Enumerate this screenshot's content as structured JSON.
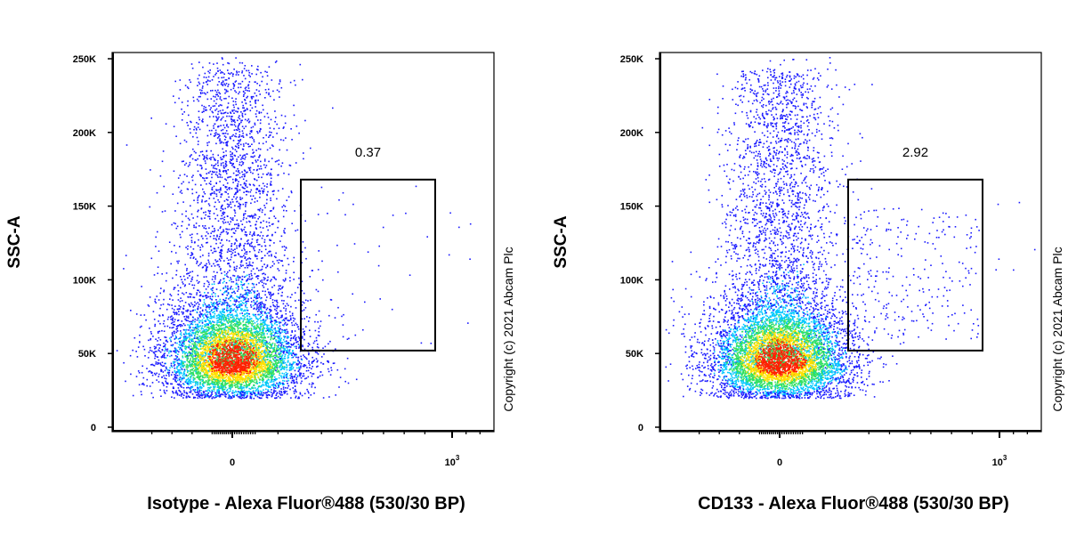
{
  "chart_data": [
    {
      "type": "scatter",
      "style": "flow-cytometry density dot plot (pseudocolor)",
      "xlabel": "Isotype - Alexa Fluor®488 (530/30 BP)",
      "ylabel": "SSC-A",
      "y_ticks": [
        "0",
        "50K",
        "100K",
        "150K",
        "200K",
        "250K"
      ],
      "y_tick_values": [
        0,
        50000,
        100000,
        150000,
        200000,
        250000
      ],
      "ylim": [
        0,
        250000
      ],
      "x_scale": "biexponential",
      "x_ticks": [
        {
          "label": "0",
          "value": 0
        },
        {
          "label": "10",
          "sup": "3",
          "value": 1000
        }
      ],
      "xlim": [
        -500,
        1300
      ],
      "gate": {
        "label": "0.37",
        "percent": 0.37,
        "x_range": [
          300,
          950
        ],
        "y_range": [
          52000,
          168000
        ]
      },
      "population": {
        "x_center": 0,
        "y_center": 45000,
        "events_outside_gate_approx": 8000,
        "events_in_gate_approx": 30
      },
      "copyright": "Copyright (c) 2021 Abcam Plc"
    },
    {
      "type": "scatter",
      "style": "flow-cytometry density dot plot (pseudocolor)",
      "xlabel": "CD133 - Alexa Fluor®488 (530/30 BP)",
      "ylabel": "SSC-A",
      "y_ticks": [
        "0",
        "50K",
        "100K",
        "150K",
        "200K",
        "250K"
      ],
      "y_tick_values": [
        0,
        50000,
        100000,
        150000,
        200000,
        250000
      ],
      "ylim": [
        0,
        250000
      ],
      "x_scale": "biexponential",
      "x_ticks": [
        {
          "label": "0",
          "value": 0
        },
        {
          "label": "10",
          "sup": "3",
          "value": 1000
        }
      ],
      "xlim": [
        -500,
        1300
      ],
      "gate": {
        "label": "2.92",
        "percent": 2.92,
        "x_range": [
          300,
          950
        ],
        "y_range": [
          52000,
          168000
        ]
      },
      "population": {
        "x_center": 0,
        "y_center": 45000,
        "events_outside_gate_approx": 8000,
        "events_in_gate_approx": 240
      },
      "copyright": "Copyright (c) 2021 Abcam Plc"
    }
  ],
  "colors": {
    "density_low": "#1a1aff",
    "density_mid_low": "#00c8ff",
    "density_mid": "#30e060",
    "density_mid_high": "#ffe000",
    "density_high": "#ff2000",
    "axis": "#000000"
  }
}
